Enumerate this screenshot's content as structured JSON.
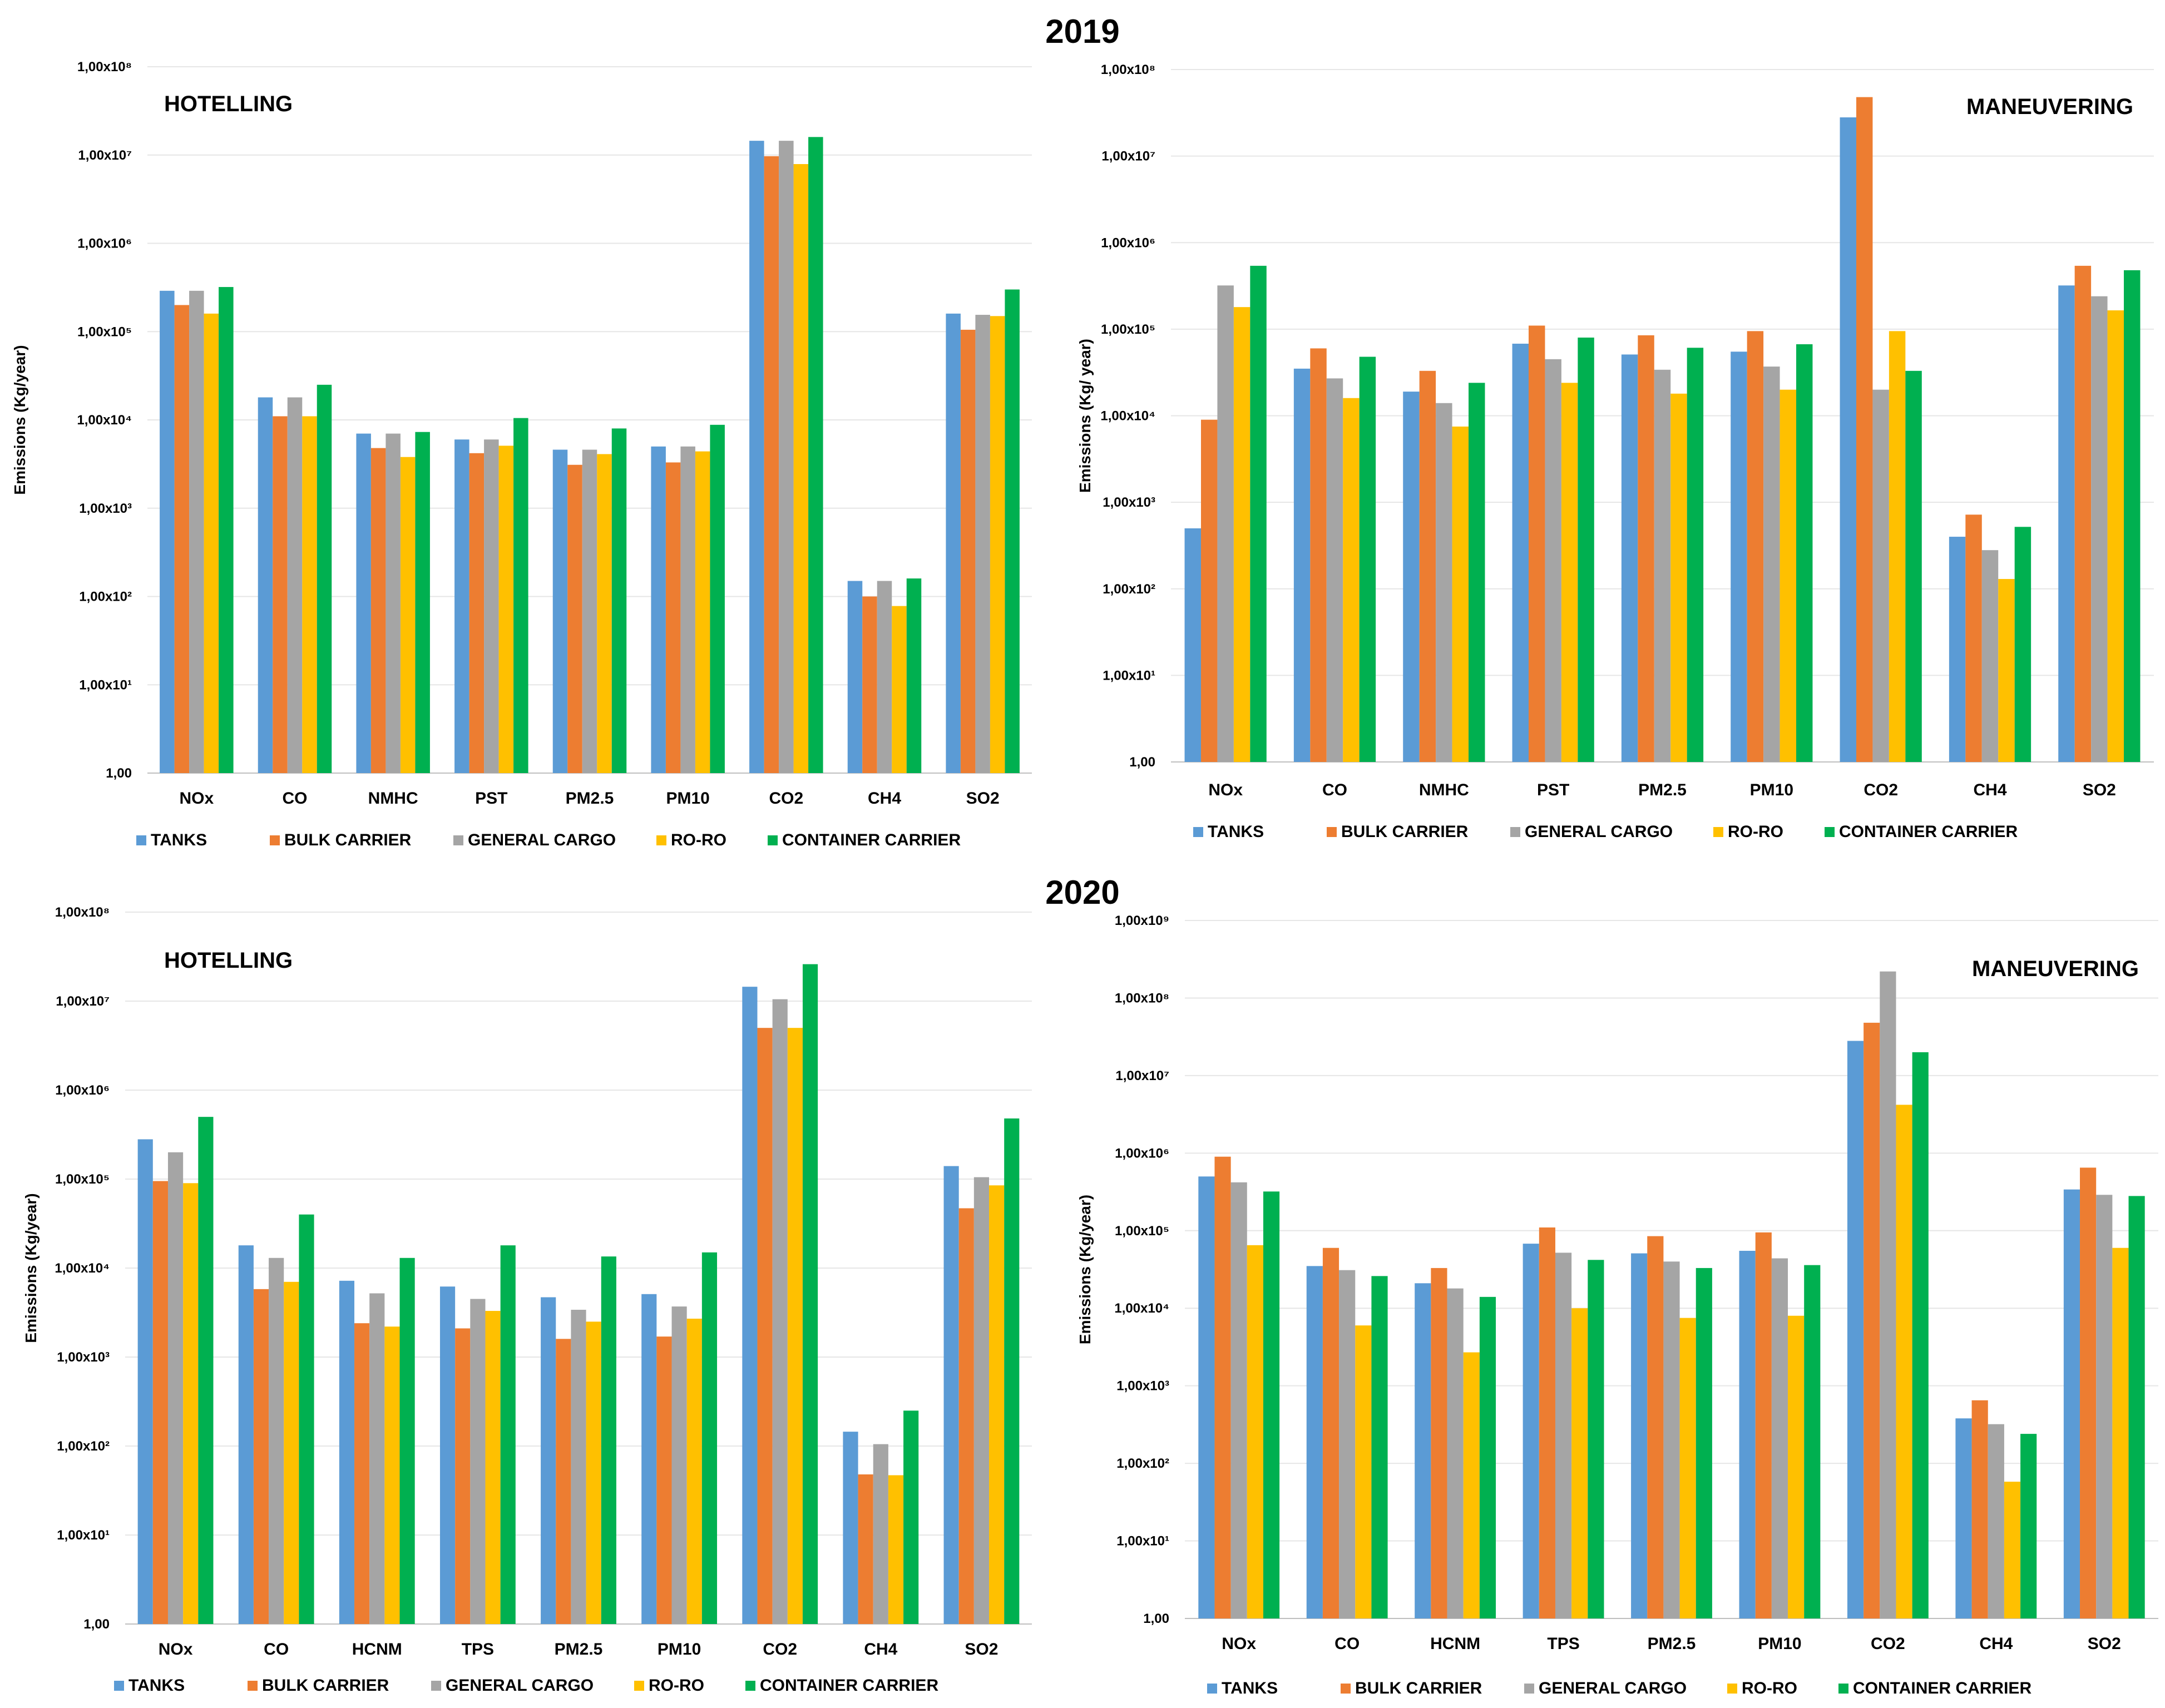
{
  "year_2019": "2019",
  "year_2020": "2020",
  "chart_data": [
    {
      "type": "bar",
      "id": "h2019",
      "title": "HOTELLING",
      "title_align": "left",
      "ylabel": "Emissions (Kg/year)",
      "yscale": "log",
      "ylim": [
        1,
        100000000
      ],
      "ytick_labels": [
        "1,00",
        "1,00x10¹",
        "1,00x10²",
        "1,00x10³",
        "1,00x10⁴",
        "1,00x10⁵",
        "1,00x10⁶",
        "1,00x10⁷",
        "1,00x10⁸"
      ],
      "categories": [
        "NOx",
        "CO",
        "NMHC",
        "PST",
        "PM2.5",
        "PM10",
        "CO2",
        "CH4",
        "SO2"
      ],
      "series": [
        {
          "name": "TANKS",
          "color": "#5b9bd5",
          "values": [
            290000,
            18000,
            7000,
            6000,
            4600,
            5000,
            14500000,
            150,
            160000
          ]
        },
        {
          "name": "BULK CARRIER",
          "color": "#ed7d31",
          "values": [
            200000,
            11000,
            4800,
            4200,
            3100,
            3300,
            9700000,
            100,
            105000
          ]
        },
        {
          "name": "GENERAL CARGO",
          "color": "#a5a5a5",
          "values": [
            290000,
            18000,
            7000,
            6000,
            4600,
            5000,
            14500000,
            150,
            155000
          ]
        },
        {
          "name": "RO-RO",
          "color": "#ffc000",
          "values": [
            160000,
            11000,
            3800,
            5100,
            4100,
            4400,
            7900000,
            78,
            150000
          ]
        },
        {
          "name": "CONTAINER CARRIER",
          "color": "#00b050",
          "values": [
            320000,
            25000,
            7300,
            10500,
            8000,
            8800,
            16000000,
            160,
            300000
          ]
        }
      ]
    },
    {
      "type": "bar",
      "id": "m2019",
      "title": "MANEUVERING",
      "title_align": "right",
      "ylabel": "Emissions (Kg/ year)",
      "yscale": "log",
      "ylim": [
        1,
        100000000
      ],
      "ytick_labels": [
        "1,00",
        "1,00x10¹",
        "1,00x10²",
        "1,00x10³",
        "1,00x10⁴",
        "1,00x10⁵",
        "1,00x10⁶",
        "1,00x10⁷",
        "1,00x10⁸"
      ],
      "categories": [
        "NOx",
        "CO",
        "NMHC",
        "PST",
        "PM2.5",
        "PM10",
        "CO2",
        "CH4",
        "SO2"
      ],
      "series": [
        {
          "name": "TANKS",
          "color": "#5b9bd5",
          "values": [
            500,
            35000,
            19000,
            68000,
            51000,
            55000,
            28000000,
            400,
            320000
          ]
        },
        {
          "name": "BULK CARRIER",
          "color": "#ed7d31",
          "values": [
            9000,
            60000,
            33000,
            110000,
            85000,
            95000,
            48000000,
            720,
            540000
          ]
        },
        {
          "name": "GENERAL CARGO",
          "color": "#a5a5a5",
          "values": [
            320000,
            27000,
            14000,
            45000,
            34000,
            37000,
            20000,
            280,
            240000
          ]
        },
        {
          "name": "RO-RO",
          "color": "#ffc000",
          "values": [
            180000,
            16000,
            7500,
            24000,
            18000,
            20000,
            95000,
            130,
            165000
          ]
        },
        {
          "name": "CONTAINER CARRIER",
          "color": "#00b050",
          "values": [
            540000,
            48000,
            24000,
            80000,
            61000,
            67000,
            33000,
            520,
            480000
          ]
        }
      ]
    },
    {
      "type": "bar",
      "id": "h2020",
      "title": "HOTELLING",
      "title_align": "left",
      "ylabel": "Emissions (Kg/year)",
      "yscale": "log",
      "ylim": [
        1,
        100000000
      ],
      "ytick_labels": [
        "1,00",
        "1,00x10¹",
        "1,00x10²",
        "1,00x10³",
        "1,00x10⁴",
        "1,00x10⁵",
        "1,00x10⁶",
        "1,00x10⁷",
        "1,00x10⁸"
      ],
      "categories": [
        "NOx",
        "CO",
        "HCNM",
        "TPS",
        "PM2.5",
        "PM10",
        "CO2",
        "CH4",
        "SO2"
      ],
      "series": [
        {
          "name": "TANKS",
          "color": "#5b9bd5",
          "values": [
            280000,
            18000,
            7200,
            6200,
            4700,
            5100,
            14500000,
            145,
            140000
          ]
        },
        {
          "name": "BULK CARRIER",
          "color": "#ed7d31",
          "values": [
            95000,
            5800,
            2400,
            2100,
            1600,
            1700,
            5000000,
            48,
            47000
          ]
        },
        {
          "name": "GENERAL CARGO",
          "color": "#a5a5a5",
          "values": [
            200000,
            13000,
            5200,
            4500,
            3400,
            3700,
            10500000,
            105,
            105000
          ]
        },
        {
          "name": "RO-RO",
          "color": "#ffc000",
          "values": [
            90000,
            7000,
            2200,
            3300,
            2500,
            2700,
            5000000,
            47,
            85000
          ]
        },
        {
          "name": "CONTAINER CARRIER",
          "color": "#00b050",
          "values": [
            500000,
            40000,
            13000,
            18000,
            13500,
            15000,
            26000000,
            250,
            480000
          ]
        }
      ]
    },
    {
      "type": "bar",
      "id": "m2020",
      "title": "MANEUVERING",
      "title_align": "right",
      "ylabel": "Emissions (Kg/year)",
      "yscale": "log",
      "ylim": [
        1,
        1000000000
      ],
      "ytick_labels": [
        "1,00",
        "1,00x10¹",
        "1,00x10²",
        "1,00x10³",
        "1,00x10⁴",
        "1,00x10⁵",
        "1,00x10⁶",
        "1,00x10⁷",
        "1,00x10⁸",
        "1,00x10⁹"
      ],
      "categories": [
        "NOx",
        "CO",
        "HCNM",
        "TPS",
        "PM2.5",
        "PM10",
        "CO2",
        "CH4",
        "SO2"
      ],
      "series": [
        {
          "name": "TANKS",
          "color": "#5b9bd5",
          "values": [
            500000,
            35000,
            21000,
            68000,
            51000,
            55000,
            28000000,
            380,
            340000
          ]
        },
        {
          "name": "BULK CARRIER",
          "color": "#ed7d31",
          "values": [
            900000,
            60000,
            33000,
            110000,
            85000,
            95000,
            48000000,
            650,
            650000
          ]
        },
        {
          "name": "GENERAL CARGO",
          "color": "#a5a5a5",
          "values": [
            420000,
            31000,
            18000,
            52000,
            40000,
            44000,
            220000000,
            320,
            290000
          ]
        },
        {
          "name": "RO-RO",
          "color": "#ffc000",
          "values": [
            65000,
            6000,
            2700,
            10000,
            7500,
            8000,
            4200000,
            58,
            60000
          ]
        },
        {
          "name": "CONTAINER CARRIER",
          "color": "#00b050",
          "values": [
            320000,
            26000,
            14000,
            42000,
            33000,
            36000,
            20000000,
            240,
            280000
          ]
        }
      ]
    }
  ]
}
